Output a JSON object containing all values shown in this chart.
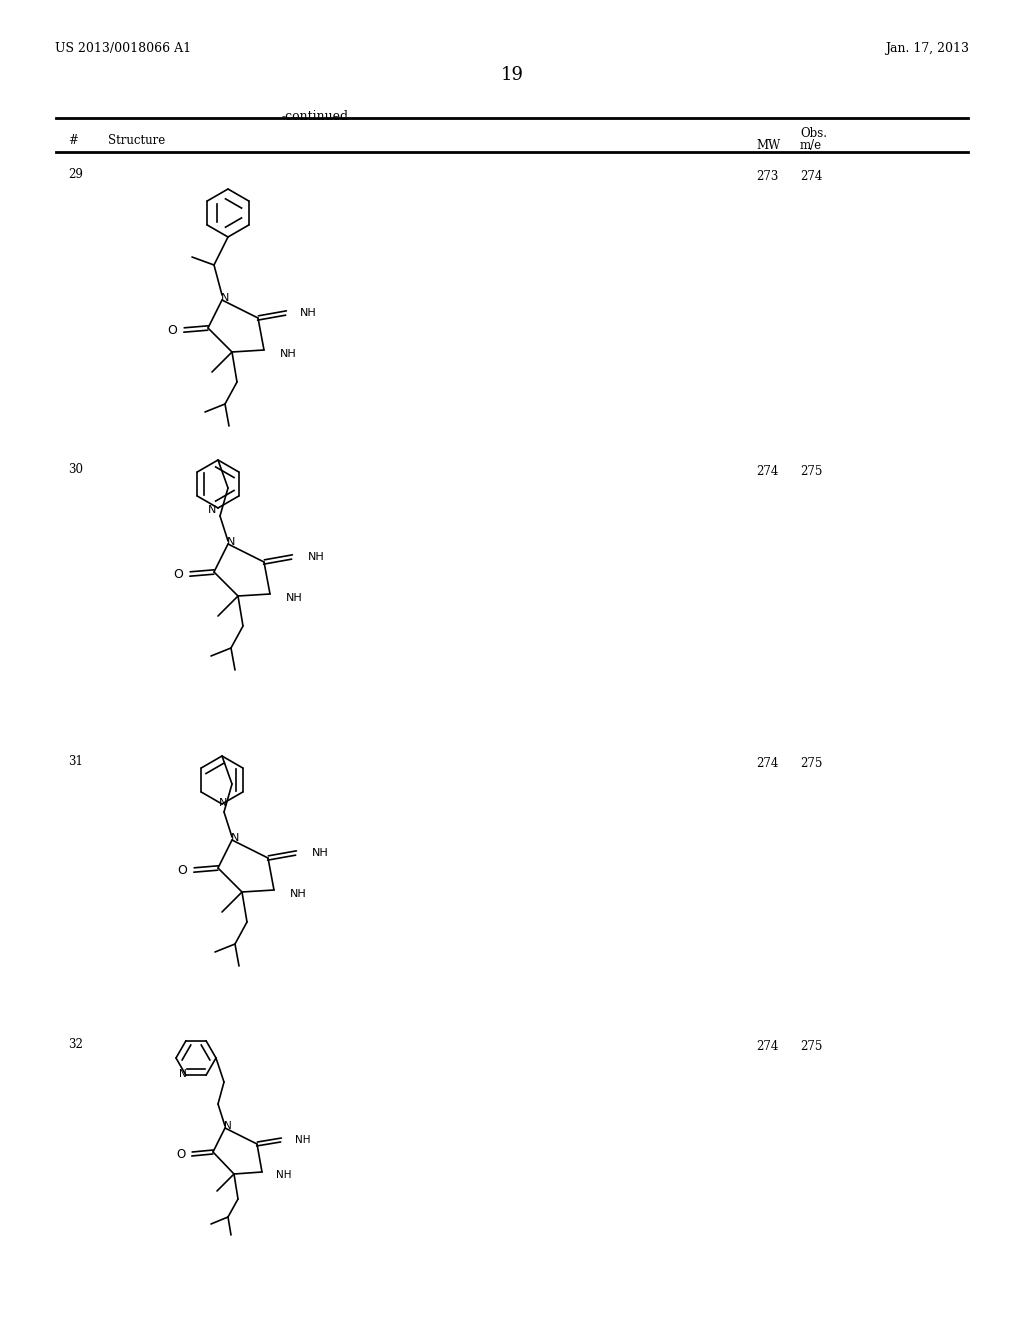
{
  "page_header_left": "US 2013/0018066 A1",
  "page_header_right": "Jan. 17, 2013",
  "page_number": "19",
  "continued_label": "-continued",
  "col_num": "#",
  "col_structure": "Structure",
  "col_mw": "MW",
  "col_obs_top": "Obs.",
  "col_obs_bot": "m/e",
  "compounds": [
    {
      "num": "29",
      "mw": "273",
      "obs": "274"
    },
    {
      "num": "30",
      "mw": "274",
      "obs": "275"
    },
    {
      "num": "31",
      "mw": "274",
      "obs": "275"
    },
    {
      "num": "32",
      "mw": "274",
      "obs": "275"
    }
  ],
  "bg_color": "#ffffff",
  "text_color": "#000000",
  "bond_color": "#000000",
  "lw": 1.2
}
